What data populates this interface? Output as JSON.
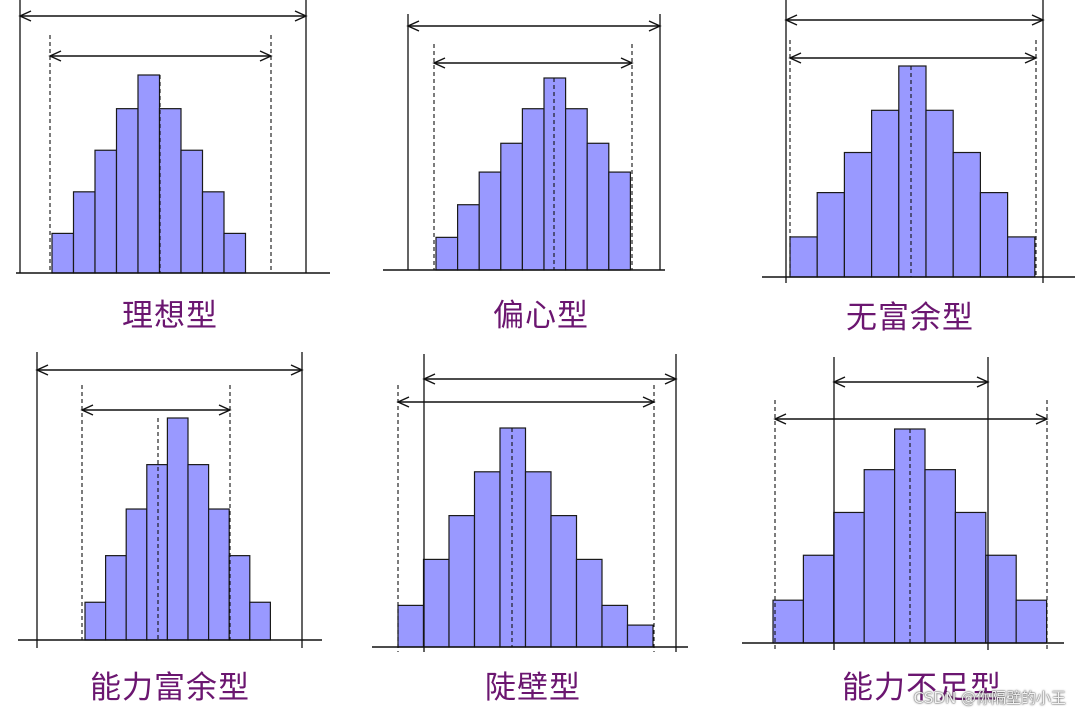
{
  "panels": [
    {
      "id": "ideal",
      "title": "理想型",
      "bars": [
        0.2,
        0.41,
        0.62,
        0.83,
        1.0,
        0.83,
        0.62,
        0.41,
        0.2
      ]
    },
    {
      "id": "off-center",
      "title": "偏心型",
      "bars": [
        0.17,
        0.34,
        0.51,
        0.66,
        0.84,
        1.0,
        0.84,
        0.66,
        0.51
      ]
    },
    {
      "id": "no-margin",
      "title": "无富余型",
      "bars": [
        0.19,
        0.4,
        0.59,
        0.79,
        1.0,
        0.79,
        0.59,
        0.4,
        0.19
      ]
    },
    {
      "id": "excess-capability",
      "title": "能力富余型",
      "bars": [
        0.17,
        0.38,
        0.59,
        0.79,
        1.0,
        0.79,
        0.59,
        0.38,
        0.17
      ]
    },
    {
      "id": "cliff",
      "title": "陡壁型",
      "bars": [
        0.19,
        0.4,
        0.6,
        0.8,
        1.0,
        0.8,
        0.6,
        0.4,
        0.19,
        0.1
      ]
    },
    {
      "id": "insufficient-capability",
      "title": "能力不足型",
      "bars": [
        0.2,
        0.41,
        0.61,
        0.81,
        1.0,
        0.81,
        0.61,
        0.41,
        0.2
      ]
    }
  ],
  "colors": {
    "bar_fill": "#9999ff",
    "bar_stroke": "#1a1a1a",
    "title": "#6b1670"
  },
  "watermark": "CSDN @你隔壁的小王"
}
